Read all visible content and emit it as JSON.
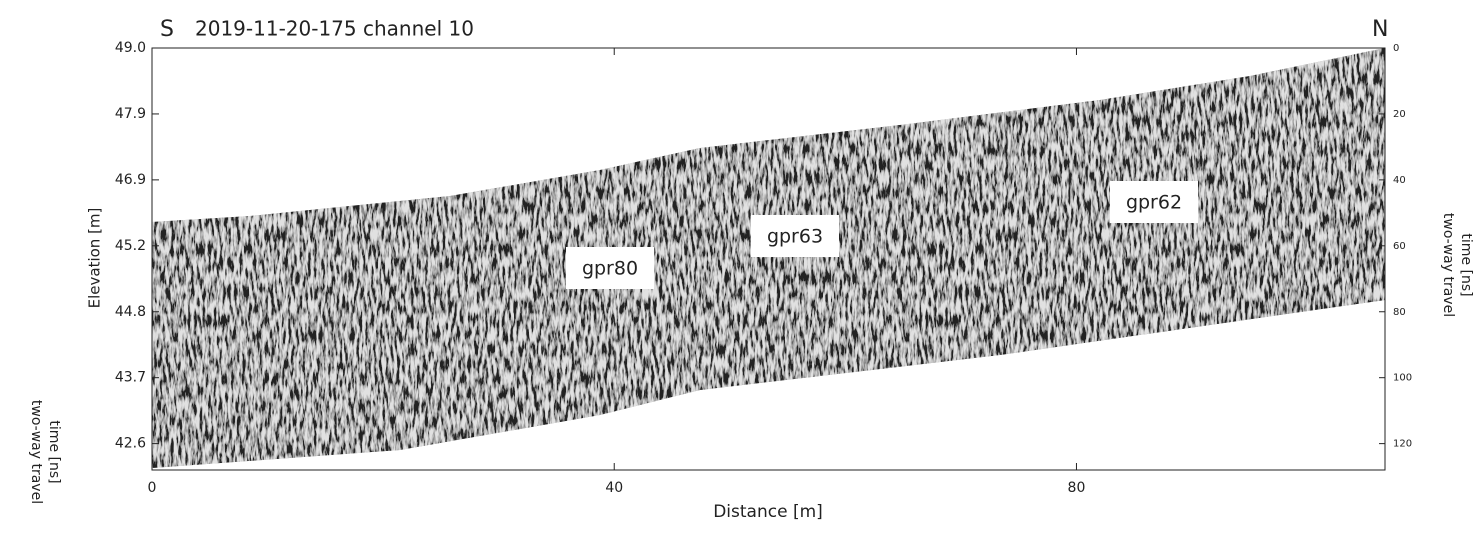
{
  "chart_data": {
    "type": "radargram",
    "title": "2019-11-20-175 channel 10",
    "direction_left": "S",
    "direction_right": "N",
    "xlabel": "Distance [m]",
    "ylabel": "Elevation [m]",
    "y2label": [
      "two-way travel",
      "time [ns]"
    ],
    "side_label": [
      "two-way travel",
      "time [ns]"
    ],
    "xlim": [
      0,
      106.7
    ],
    "xticks": [
      0,
      40,
      80
    ],
    "yticks": [
      {
        "value": 49,
        "label": "49.0"
      },
      47.9,
      46.9,
      45.2,
      44.8,
      43.7,
      42.6
    ],
    "y2lim": [
      0,
      128
    ],
    "y2ticks": [
      0,
      20,
      40,
      60,
      80,
      100,
      120
    ],
    "annotations": [
      "gpr80",
      "gpr63",
      "gpr62"
    ]
  }
}
